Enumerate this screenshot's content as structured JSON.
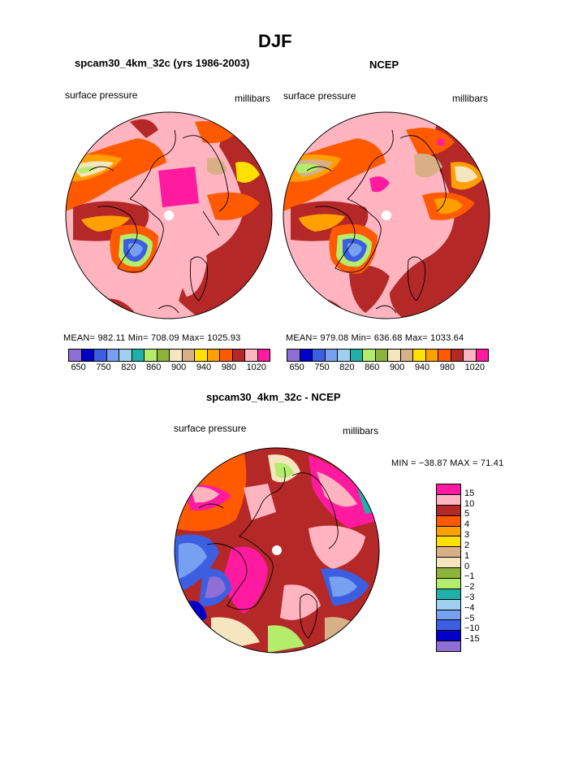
{
  "main_title": "DJF",
  "panels": [
    {
      "title": "spcam30_4km_32c (yrs 1986-2003)",
      "variable": "surface pressure",
      "units": "millibars",
      "stats": "MEAN= 982.11   Min= 708.09   Max= 1025.93"
    },
    {
      "title": "NCEP",
      "variable": "surface pressure",
      "units": "millibars",
      "stats": "MEAN= 979.08   Min= 636.68   Max= 1033.64"
    }
  ],
  "colorbar_top": {
    "labels": [
      "650",
      "750",
      "820",
      "860",
      "900",
      "940",
      "980",
      "1020"
    ],
    "colors": [
      "#8f6fd6",
      "#0000c8",
      "#3c5ee0",
      "#78a0f0",
      "#a0d0f0",
      "#20b0a8",
      "#b4ec6c",
      "#8cb43c",
      "#f5e6c0",
      "#d8b088",
      "#ffe000",
      "#ffa000",
      "#ff5a00",
      "#b42828",
      "#ffb4c0",
      "#ff1aa0"
    ]
  },
  "diff_panel": {
    "title": "spcam30_4km_32c - NCEP",
    "variable": "surface pressure",
    "units": "millibars",
    "stats": "MIN = −38.87  MAX =   71.41"
  },
  "colorbar_diff": {
    "labels": [
      "15",
      "10",
      "5",
      "4",
      "3",
      "2",
      "1",
      "0",
      "−1",
      "−2",
      "−3",
      "−4",
      "−5",
      "−10",
      "−15"
    ],
    "colors": [
      "#ff1aa0",
      "#ffb4c0",
      "#b42828",
      "#ff5a00",
      "#ffa000",
      "#ffe000",
      "#d8b088",
      "#f5e6c0",
      "#8cb43c",
      "#b4ec6c",
      "#20b0a8",
      "#a0d0f0",
      "#78a0f0",
      "#3c5ee0",
      "#0000c8",
      "#8f6fd6"
    ]
  }
}
